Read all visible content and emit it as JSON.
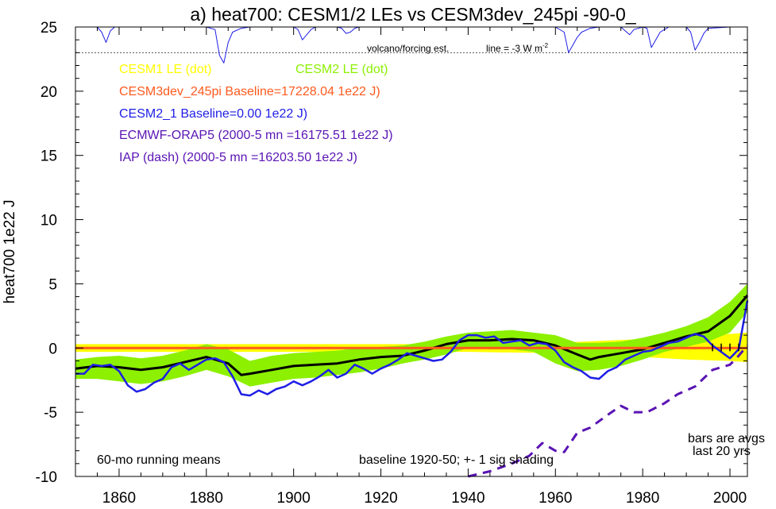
{
  "chart_data": {
    "type": "line",
    "title": "a) heat700: CESM1/2 LEs vs CESM3dev_245pi -90-0_",
    "ylabel": "heat700 1e22 J",
    "xlabel": "",
    "xlim": [
      1850,
      2004
    ],
    "ylim": [
      -10,
      25
    ],
    "xticks": [
      1860,
      1880,
      1900,
      1920,
      1940,
      1960,
      1980,
      2000
    ],
    "yticks": [
      -10,
      -5,
      0,
      5,
      10,
      15,
      20,
      25
    ],
    "grid": false,
    "legend": [
      {
        "text": "CESM1 LE (dot)",
        "color": "#ffff00"
      },
      {
        "text": "CESM2 LE (dot)",
        "color": "#8cf000"
      },
      {
        "text": "CESM3dev_245pi Baseline=17228.04 1e22 J)",
        "color": "#ff5a1e"
      },
      {
        "text": "CESM2_1 Baseline=0.00 1e22 J)",
        "color": "#1e1ee6"
      },
      {
        "text": "ECMWF-ORAP5 (2000-5 mn =16175.51 1e22 J)",
        "color": "#5a14b4"
      },
      {
        "text": "IAP (dash) (2000-5 mn =16203.50 1e22 J)",
        "color": "#5a14b4"
      }
    ],
    "annotations": {
      "volcano": "volcano/forcing est.",
      "line": "line = -3 W m",
      "line_sup": "-2",
      "running": "60-mo running means",
      "baseline": "baseline 1920-50; +- 1 sig shading",
      "bars1": "bars are avgs",
      "bars2": "last 20 yrs"
    },
    "volcano_ref_level": 23,
    "series": [
      {
        "name": "CESM1 LE (dot)",
        "role": "band",
        "color": "#ffff00",
        "x": [
          1850,
          1860,
          1880,
          1900,
          1920,
          1940,
          1960,
          1980,
          1990,
          2000,
          2004
        ],
        "upper": [
          0.3,
          0.3,
          0.3,
          0.3,
          0.3,
          0.3,
          0.4,
          0.7,
          0.9,
          1.1,
          1.2
        ],
        "lower": [
          -0.3,
          -0.3,
          -0.3,
          -0.3,
          -0.3,
          -0.3,
          -0.4,
          -0.7,
          -0.9,
          -1.0,
          -1.1
        ]
      },
      {
        "name": "CESM2 LE (dot)",
        "role": "band",
        "color": "#8cf000",
        "x": [
          1850,
          1855,
          1860,
          1865,
          1870,
          1875,
          1880,
          1885,
          1890,
          1895,
          1900,
          1905,
          1910,
          1915,
          1920,
          1925,
          1930,
          1935,
          1940,
          1945,
          1950,
          1955,
          1960,
          1965,
          1970,
          1975,
          1980,
          1985,
          1990,
          1995,
          2000,
          2004
        ],
        "upper": [
          -0.9,
          -0.7,
          -0.6,
          -0.8,
          -0.6,
          -0.2,
          0.3,
          -0.1,
          -1.0,
          -0.6,
          -0.4,
          -0.3,
          -0.2,
          0.0,
          0.1,
          0.2,
          0.5,
          0.9,
          1.2,
          1.3,
          1.4,
          1.2,
          1.0,
          0.4,
          0.4,
          0.5,
          0.8,
          1.2,
          1.7,
          2.4,
          3.6,
          5.0
        ],
        "lower": [
          -2.4,
          -2.4,
          -2.6,
          -2.8,
          -2.6,
          -2.2,
          -1.7,
          -2.2,
          -3.0,
          -2.7,
          -2.4,
          -2.3,
          -2.1,
          -1.9,
          -1.6,
          -1.2,
          -0.9,
          -0.5,
          0.0,
          -0.1,
          -0.1,
          -0.3,
          -1.2,
          -1.8,
          -1.7,
          -1.4,
          -0.9,
          -0.3,
          0.1,
          0.5,
          1.2,
          2.8
        ]
      },
      {
        "name": "CESM2 LE (dot)",
        "role": "mean",
        "color": "#000000",
        "x": [
          1850,
          1855,
          1860,
          1865,
          1870,
          1875,
          1880,
          1885,
          1888,
          1890,
          1895,
          1900,
          1905,
          1910,
          1915,
          1920,
          1925,
          1930,
          1935,
          1940,
          1945,
          1950,
          1955,
          1960,
          1965,
          1968,
          1970,
          1975,
          1980,
          1985,
          1990,
          1995,
          2000,
          2004
        ],
        "y": [
          -1.6,
          -1.4,
          -1.5,
          -1.7,
          -1.5,
          -1.1,
          -0.7,
          -1.2,
          -2.1,
          -2.0,
          -1.7,
          -1.4,
          -1.3,
          -1.2,
          -0.9,
          -0.7,
          -0.6,
          -0.2,
          0.3,
          0.6,
          0.6,
          0.7,
          0.6,
          0.2,
          -0.5,
          -0.9,
          -0.7,
          -0.4,
          -0.1,
          0.4,
          0.9,
          1.3,
          2.5,
          4.1
        ]
      },
      {
        "name": "CESM3dev_245pi Baseline=17228.04 1e22 J)",
        "role": "line",
        "color": "#ff5a1e",
        "x": [
          1850,
          2004
        ],
        "y": [
          0,
          0
        ]
      },
      {
        "name": "CESM2_1 Baseline=0.00 1e22 J)",
        "role": "line",
        "color": "#1e1ee6",
        "x": [
          1850,
          1852,
          1854,
          1856,
          1858,
          1860,
          1862,
          1864,
          1866,
          1868,
          1870,
          1872,
          1874,
          1876,
          1878,
          1880,
          1882,
          1884,
          1886,
          1888,
          1890,
          1892,
          1894,
          1896,
          1898,
          1900,
          1902,
          1904,
          1906,
          1908,
          1910,
          1912,
          1914,
          1916,
          1918,
          1920,
          1922,
          1924,
          1926,
          1928,
          1930,
          1932,
          1934,
          1936,
          1938,
          1940,
          1942,
          1944,
          1946,
          1948,
          1950,
          1952,
          1954,
          1956,
          1958,
          1960,
          1962,
          1964,
          1966,
          1968,
          1970,
          1972,
          1974,
          1976,
          1978,
          1980,
          1982,
          1984,
          1986,
          1988,
          1990,
          1992,
          1994,
          1996,
          1998,
          2000,
          2002,
          2004
        ],
        "y": [
          -2.0,
          -2.0,
          -1.3,
          -1.4,
          -1.3,
          -1.8,
          -2.9,
          -3.4,
          -3.2,
          -2.7,
          -2.4,
          -1.5,
          -1.2,
          -1.7,
          -1.3,
          -0.9,
          -0.8,
          -1.1,
          -2.2,
          -3.6,
          -3.7,
          -3.3,
          -3.6,
          -3.2,
          -3.0,
          -2.6,
          -2.9,
          -2.6,
          -2.2,
          -1.7,
          -2.3,
          -2.0,
          -1.3,
          -1.6,
          -2.0,
          -1.6,
          -1.3,
          -0.9,
          -0.4,
          -0.6,
          -0.8,
          -1.0,
          -0.9,
          -0.3,
          0.6,
          1.0,
          1.0,
          0.8,
          0.9,
          0.4,
          0.5,
          0.6,
          0.2,
          0.4,
          0.3,
          -0.2,
          -1.1,
          -1.5,
          -1.8,
          -2.3,
          -2.4,
          -1.8,
          -1.5,
          -0.9,
          -0.6,
          -0.3,
          -0.2,
          0.1,
          0.4,
          0.5,
          0.8,
          1.1,
          0.9,
          0.2,
          -0.3,
          -0.8,
          -0.1,
          3.7
        ]
      },
      {
        "name": "IAP (dash) (2000-5 mn =16203.50 1e22 J)",
        "role": "dash",
        "color": "#5a14b4",
        "x": [
          1940,
          1945,
          1950,
          1954,
          1957,
          1960,
          1962,
          1965,
          1968,
          1972,
          1975,
          1978,
          1981,
          1985,
          1988,
          1992,
          1996,
          2000,
          2002,
          2004
        ],
        "y": [
          -10.0,
          -9.6,
          -9.0,
          -8.4,
          -7.4,
          -8.0,
          -8.1,
          -6.6,
          -6.2,
          -5.2,
          -4.5,
          -5.0,
          -5.0,
          -4.3,
          -3.6,
          -3.0,
          -1.7,
          -1.3,
          -0.6,
          0.2
        ]
      },
      {
        "name": "volcano/forcing est.",
        "role": "volcano",
        "color": "#1e1ee6",
        "x": [
          1850,
          1855,
          1856,
          1857,
          1858,
          1859,
          1860,
          1865,
          1870,
          1880,
          1882,
          1883,
          1884,
          1885,
          1886,
          1888,
          1890,
          1900,
          1901,
          1902,
          1903,
          1904,
          1905,
          1910,
          1911,
          1912,
          1913,
          1914,
          1915,
          1920,
          1940,
          1960,
          1962,
          1963,
          1964,
          1965,
          1966,
          1968,
          1970,
          1972,
          1975,
          1976,
          1977,
          1978,
          1980,
          1981,
          1982,
          1983,
          1984,
          1985,
          1986,
          1990,
          1991,
          1992,
          1993,
          1994,
          1995,
          2000,
          2004
        ],
        "y": [
          25,
          25,
          24.6,
          23.8,
          24.7,
          25,
          25,
          25,
          25,
          25,
          24.8,
          22.8,
          22.2,
          23.8,
          24.6,
          24.9,
          25,
          25,
          24.8,
          24.0,
          24.4,
          24.8,
          25,
          25,
          24.9,
          24.5,
          24.6,
          24.9,
          25,
          25,
          25,
          25,
          24.6,
          23.0,
          23.6,
          24.2,
          24.6,
          24.9,
          25,
          25,
          25,
          24.7,
          24.4,
          24.8,
          25,
          24.9,
          23.4,
          24.0,
          24.6,
          24.8,
          25,
          25,
          24.6,
          23.2,
          23.8,
          24.5,
          24.9,
          25,
          25
        ]
      }
    ]
  }
}
